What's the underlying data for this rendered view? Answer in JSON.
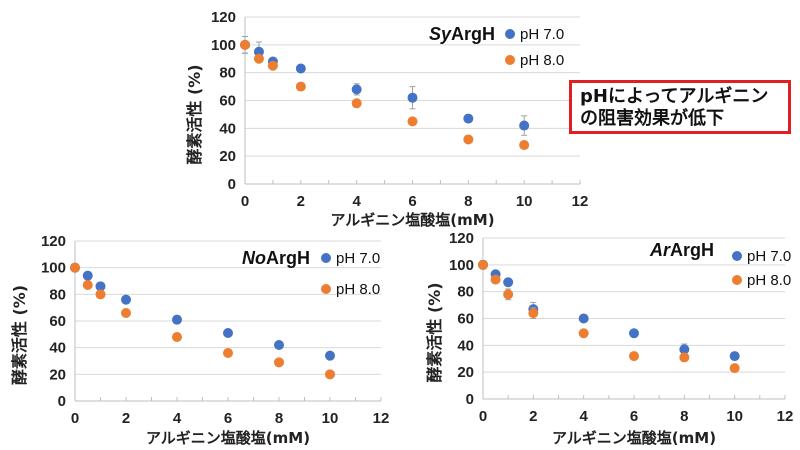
{
  "colors": {
    "ph7": "#4472C4",
    "ph8": "#ED7D31",
    "grid": "#d9d9d9",
    "axis": "#bfbfbf",
    "callout_border": "#e02020"
  },
  "callout": {
    "line1": "pHによってアルギニン",
    "line2": "の阻害効果が低下"
  },
  "chart_data": [
    {
      "id": "sy",
      "type": "scatter",
      "title_italic": "Sy",
      "title_rest": "ArgH",
      "xlabel": "アルギニン塩酸塩(mM)",
      "ylabel": "酵素活性 (%)",
      "xlim": [
        0,
        12
      ],
      "ylim": [
        0,
        120
      ],
      "xticks": [
        0,
        2,
        4,
        6,
        8,
        10,
        12
      ],
      "yticks": [
        0,
        20,
        40,
        60,
        80,
        100,
        120
      ],
      "grid": true,
      "legend": "top-right",
      "series": [
        {
          "name": "pH 7.0",
          "color_key": "ph7",
          "x": [
            0,
            0.5,
            1,
            2,
            4,
            6,
            8,
            10
          ],
          "y": [
            100,
            95,
            88,
            83,
            68,
            62,
            47,
            42
          ],
          "err": [
            6,
            7,
            1,
            1,
            4,
            8,
            1,
            7
          ]
        },
        {
          "name": "pH 8.0",
          "color_key": "ph8",
          "x": [
            0,
            0.5,
            1,
            2,
            4,
            6,
            8,
            10
          ],
          "y": [
            100,
            90,
            85,
            70,
            58,
            45,
            32,
            28
          ],
          "err": [
            6,
            1,
            1,
            1,
            1,
            1,
            1,
            1
          ]
        }
      ]
    },
    {
      "id": "no",
      "type": "scatter",
      "title_italic": "No",
      "title_rest": "ArgH",
      "xlabel": "アルギニン塩酸塩(mM)",
      "ylabel": "酵素活性 (%)",
      "xlim": [
        0,
        12
      ],
      "ylim": [
        0,
        120
      ],
      "xticks": [
        0,
        2,
        4,
        6,
        8,
        10,
        12
      ],
      "yticks": [
        0,
        20,
        40,
        60,
        80,
        100,
        120
      ],
      "grid": true,
      "legend": "top-right",
      "series": [
        {
          "name": "pH 7.0",
          "color_key": "ph7",
          "x": [
            0,
            0.5,
            1,
            2,
            4,
            6,
            8,
            10
          ],
          "y": [
            100,
            94,
            86,
            76,
            61,
            51,
            42,
            34
          ],
          "err": [
            1,
            1,
            1,
            1,
            1,
            1,
            1,
            1
          ]
        },
        {
          "name": "pH 8.0",
          "color_key": "ph8",
          "x": [
            0,
            0.5,
            1,
            2,
            4,
            6,
            8,
            10
          ],
          "y": [
            100,
            87,
            80,
            66,
            48,
            36,
            29,
            20
          ],
          "err": [
            1,
            1,
            1,
            1,
            1,
            1,
            1,
            1
          ]
        }
      ]
    },
    {
      "id": "ar",
      "type": "scatter",
      "title_italic": "Ar",
      "title_rest": "ArgH",
      "xlabel": "アルギニン塩酸塩(mM)",
      "ylabel": "酵素活性 (%)",
      "xlim": [
        0,
        12
      ],
      "ylim": [
        0,
        120
      ],
      "xticks": [
        0,
        2,
        4,
        6,
        8,
        10,
        12
      ],
      "yticks": [
        0,
        20,
        40,
        60,
        80,
        100,
        120
      ],
      "grid": true,
      "legend": "top-right",
      "series": [
        {
          "name": "pH 7.0",
          "color_key": "ph7",
          "x": [
            0,
            0.5,
            1,
            2,
            4,
            6,
            8,
            10
          ],
          "y": [
            100,
            93,
            87,
            67,
            60,
            49,
            37,
            32
          ],
          "err": [
            3,
            2,
            1,
            5,
            1,
            1,
            4,
            1
          ]
        },
        {
          "name": "pH 8.0",
          "color_key": "ph8",
          "x": [
            0,
            0.5,
            1,
            2,
            4,
            6,
            8,
            10
          ],
          "y": [
            100,
            89,
            78,
            64,
            49,
            32,
            31,
            23
          ],
          "err": [
            3,
            2,
            4,
            4,
            1,
            1,
            1,
            1
          ]
        }
      ]
    }
  ]
}
